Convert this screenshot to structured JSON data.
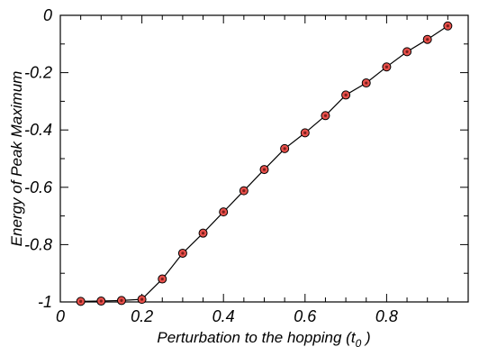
{
  "chart_data": {
    "type": "line",
    "xlabel": "Perturbation to the hopping (t",
    "xlabel_sub": "0",
    "xlabel_tail": " )",
    "ylabel": "Energy of Peak Maximum",
    "xlim": [
      0,
      1.0
    ],
    "ylim": [
      -1,
      0
    ],
    "x_ticks": [
      0,
      0.2,
      0.4,
      0.6,
      0.8
    ],
    "x_tick_labels": [
      "0",
      "0.2",
      "0.4",
      "0.6",
      "0.8"
    ],
    "y_ticks": [
      -1,
      -0.8,
      -0.6,
      -0.4,
      -0.2,
      0
    ],
    "y_tick_labels": [
      "-1",
      "-0.8",
      "-0.6",
      "-0.4",
      "-0.2",
      "0"
    ],
    "grid": false,
    "series": [
      {
        "marker": "circle",
        "marker_fill": "#e8504b",
        "line_color": "#000000",
        "x": [
          0.05,
          0.1,
          0.15,
          0.2,
          0.25,
          0.3,
          0.35,
          0.4,
          0.45,
          0.5,
          0.55,
          0.6,
          0.65,
          0.7,
          0.75,
          0.8,
          0.85,
          0.9,
          0.95
        ],
        "y": [
          -0.998,
          -0.997,
          -0.995,
          -0.991,
          -0.92,
          -0.83,
          -0.76,
          -0.686,
          -0.612,
          -0.538,
          -0.465,
          -0.41,
          -0.35,
          -0.278,
          -0.236,
          -0.18,
          -0.127,
          -0.084,
          -0.037
        ]
      }
    ]
  }
}
